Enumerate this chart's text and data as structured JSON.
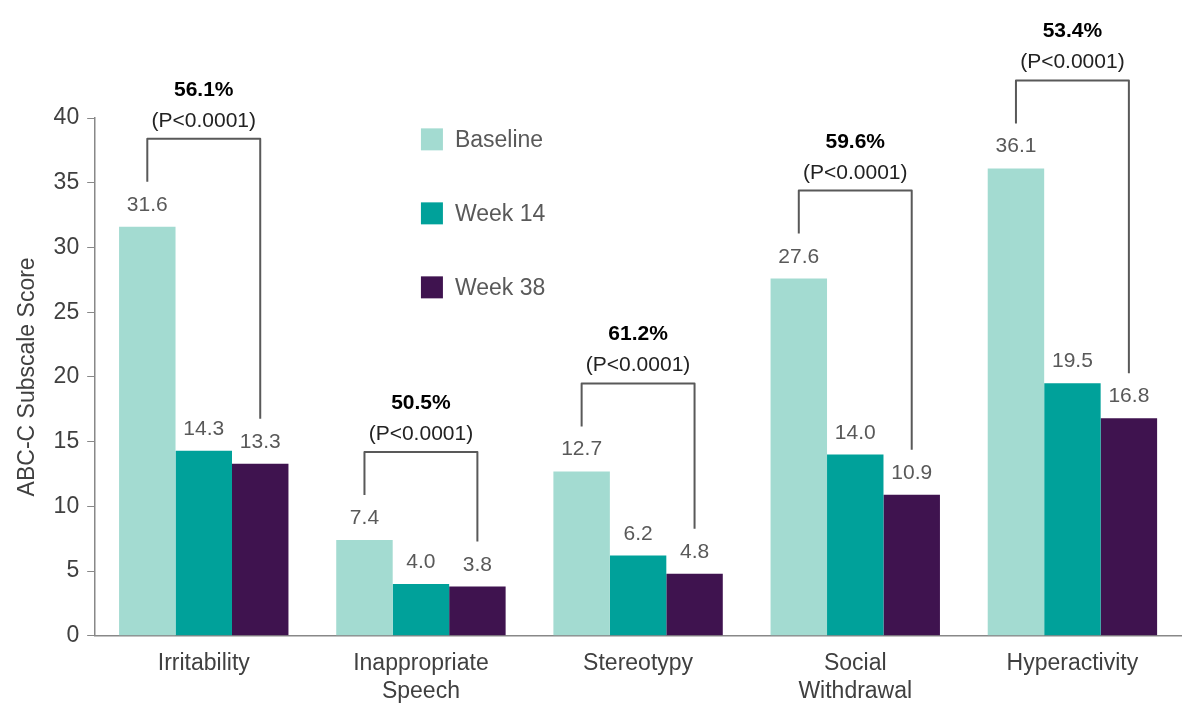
{
  "chart_data": {
    "type": "bar",
    "ylabel": "ABC-C Subscale Score",
    "categories": [
      "Irritability",
      "Inappropriate Speech",
      "Stereotypy",
      "Social Withdrawal",
      "Hyperactivity"
    ],
    "series": [
      {
        "name": "Baseline",
        "color": "#a3dbd1",
        "values": [
          31.6,
          7.4,
          12.7,
          27.6,
          36.1
        ]
      },
      {
        "name": "Week 14",
        "color": "#00a19a",
        "values": [
          14.3,
          4.0,
          6.2,
          14.0,
          19.5
        ]
      },
      {
        "name": "Week 38",
        "color": "#3f134f",
        "values": [
          13.3,
          3.8,
          4.8,
          10.9,
          16.8
        ]
      }
    ],
    "value_labels": [
      [
        "31.6",
        "7.4",
        "12.7",
        "27.6",
        "36.1"
      ],
      [
        "14.3",
        "4.0",
        "6.2",
        "14.0",
        "19.5"
      ],
      [
        "13.3",
        "3.8",
        "4.8",
        "10.9",
        "16.8"
      ]
    ],
    "ylim": [
      0,
      40
    ],
    "yticks": [
      0,
      5,
      10,
      15,
      20,
      25,
      30,
      35,
      40
    ],
    "grid": false,
    "legend": "top",
    "annotations": [
      "56.1%",
      "(P<0.0001)",
      "50.5%",
      "(P<0.0001)",
      "61.2%",
      "(P<0.0001)",
      "59.6%",
      "(P<0.0001)",
      "53.4%",
      "(P<0.0001)"
    ]
  }
}
